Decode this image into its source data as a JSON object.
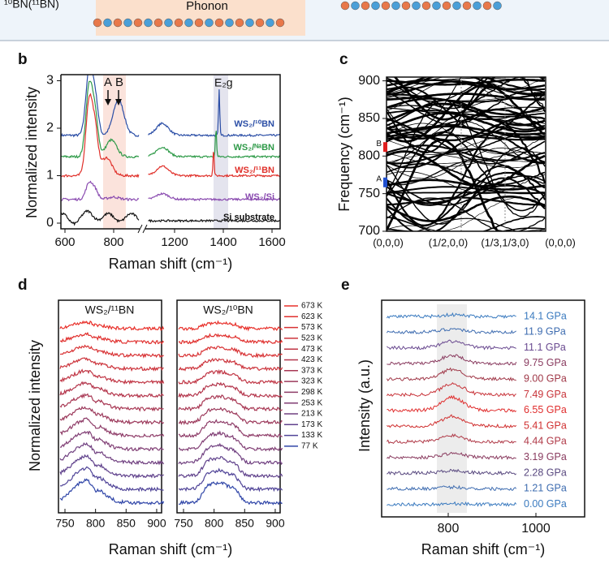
{
  "top": {
    "left_text": "¹⁰BN(¹¹BN)",
    "phonon": "Phonon"
  },
  "b": {
    "letter": "b",
    "xlabel": "Raman shift (cm⁻¹)",
    "ylabel": "Normalized intensity",
    "xticks": [
      600,
      800,
      1200,
      1400,
      1600
    ],
    "yticks": [
      0,
      1,
      2,
      3
    ],
    "peak_a": "A",
    "peak_b": "B",
    "mode": "E₂g",
    "series": [
      {
        "name": "WS₂/¹⁰BN",
        "color": "#2b4ea6"
      },
      {
        "name": "WS₂/ᴺᵃBN",
        "color": "#2e9a48"
      },
      {
        "name": "WS₂/¹¹BN",
        "color": "#e0302a"
      },
      {
        "name": "WS₂/Si",
        "color": "#8a4bb0"
      },
      {
        "name": "Si substrate",
        "color": "#111111"
      }
    ]
  },
  "c": {
    "letter": "c",
    "ylabel": "Frequency (cm⁻¹)",
    "ylim": [
      700,
      905
    ],
    "yticks": [
      700,
      750,
      800,
      850,
      900
    ],
    "kpoints": [
      "(0,0,0)",
      "(1/2,0,0)",
      "(1/3,1/3,0)",
      "(0,0,0)"
    ],
    "markers": [
      {
        "label": "A",
        "value": 765,
        "color": "#2050d0"
      },
      {
        "label": "B",
        "value": 812,
        "color": "#e02020"
      }
    ]
  },
  "d": {
    "letter": "d",
    "ylabel": "Normalized intensity",
    "xlabel": "Raman shift (cm⁻¹)",
    "xticks": [
      750,
      800,
      850,
      900
    ],
    "panels": [
      "WS₂/¹¹BN",
      "WS₂/¹⁰BN"
    ],
    "legend": [
      {
        "name": "673 K",
        "color": "#e8302a"
      },
      {
        "name": "623 K",
        "color": "#e0302e"
      },
      {
        "name": "573 K",
        "color": "#d83234"
      },
      {
        "name": "523 K",
        "color": "#cc343c"
      },
      {
        "name": "473 K",
        "color": "#c03544"
      },
      {
        "name": "423 K",
        "color": "#b4364c"
      },
      {
        "name": "373 K",
        "color": "#a83854"
      },
      {
        "name": "323 K",
        "color": "#9c3a5c"
      },
      {
        "name": "298 K",
        "color": "#8e3c68"
      },
      {
        "name": "253 K",
        "color": "#803e74"
      },
      {
        "name": "213 K",
        "color": "#704080"
      },
      {
        "name": "173 K",
        "color": "#60428c"
      },
      {
        "name": "133 K",
        "color": "#504498"
      },
      {
        "name": "77 K",
        "color": "#3046a8"
      }
    ]
  },
  "e": {
    "letter": "e",
    "ylabel": "Intensity (a.u.)",
    "xlabel": "Raman shift (cm⁻¹)",
    "xticks": [
      800,
      1000
    ],
    "series": [
      {
        "name": "14.1 GPa",
        "color": "#3a7abf"
      },
      {
        "name": "11.9 GPa",
        "color": "#3e6cb0"
      },
      {
        "name": "11.1 GPa",
        "color": "#6a4a90"
      },
      {
        "name": "9.75 GPa",
        "color": "#8a3c60"
      },
      {
        "name": "9.00 GPa",
        "color": "#a03848"
      },
      {
        "name": "7.49 GPa",
        "color": "#c8343a"
      },
      {
        "name": "6.55 GPa",
        "color": "#e02e2e"
      },
      {
        "name": "5.41 GPa",
        "color": "#d03030"
      },
      {
        "name": "4.44 GPa",
        "color": "#b03a48"
      },
      {
        "name": "3.19 GPa",
        "color": "#8a3c60"
      },
      {
        "name": "2.28 GPa",
        "color": "#5a4a80"
      },
      {
        "name": "1.21 GPa",
        "color": "#3e6cb0"
      },
      {
        "name": "0.00 GPa",
        "color": "#3a7abf"
      }
    ]
  }
}
